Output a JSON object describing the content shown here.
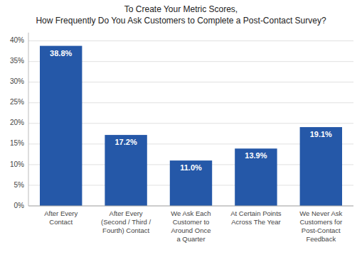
{
  "chart_data": {
    "type": "bar",
    "title": "To Create Your Metric Scores,\nHow Frequently Do You Ask Customers to Complete a Post-Contact Survey?",
    "categories": [
      "After Every\nContact",
      "After Every\n(Second / Third /\nFourth) Contact",
      "We Ask Each\nCustomer to\nAround Once\na Quarter",
      "At Certain Points\nAcross The Year",
      "We Never Ask\nCustomers for\nPost-Contact\nFeedback"
    ],
    "values": [
      38.8,
      17.2,
      11.0,
      13.9,
      19.1
    ],
    "value_labels": [
      "38.8%",
      "17.2%",
      "11.0%",
      "13.9%",
      "19.1%"
    ],
    "data_labels": true,
    "color": "#2558a8",
    "ylim": [
      0,
      42
    ],
    "yticks": [
      {
        "value": 0,
        "label": "0%"
      },
      {
        "value": 5,
        "label": "5%"
      },
      {
        "value": 10,
        "label": "10%"
      },
      {
        "value": 15,
        "label": "15%"
      },
      {
        "value": 20,
        "label": "20%"
      },
      {
        "value": 25,
        "label": "25%"
      },
      {
        "value": 30,
        "label": "30%"
      },
      {
        "value": 35,
        "label": "35%"
      },
      {
        "value": 40,
        "label": "40%"
      }
    ],
    "grid": true
  }
}
